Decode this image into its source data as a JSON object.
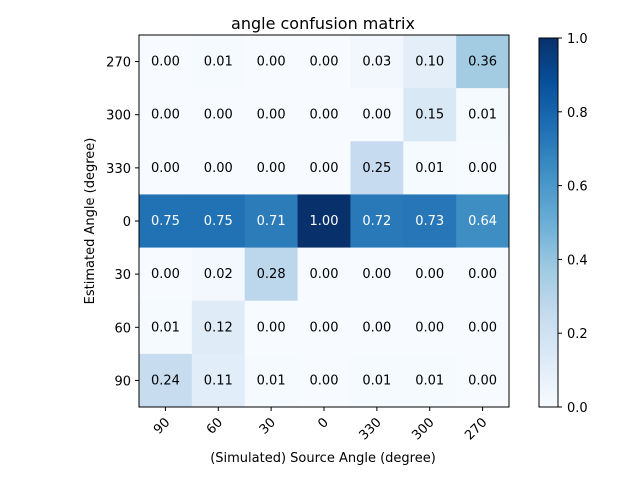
{
  "chart_data": {
    "type": "heatmap",
    "title": "angle confusion matrix",
    "xlabel": "(Simulated) Source Angle (degree)",
    "ylabel": "Estimated Angle (degree)",
    "x_categories": [
      "90",
      "60",
      "30",
      "0",
      "330",
      "300",
      "270"
    ],
    "y_categories": [
      "270",
      "300",
      "330",
      "0",
      "30",
      "60",
      "90"
    ],
    "values": [
      [
        0.0,
        0.01,
        0.0,
        0.0,
        0.03,
        0.1,
        0.36
      ],
      [
        0.0,
        0.0,
        0.0,
        0.0,
        0.0,
        0.15,
        0.01
      ],
      [
        0.0,
        0.0,
        0.0,
        0.0,
        0.25,
        0.01,
        0.0
      ],
      [
        0.75,
        0.75,
        0.71,
        1.0,
        0.72,
        0.73,
        0.64
      ],
      [
        0.0,
        0.02,
        0.28,
        0.0,
        0.0,
        0.0,
        0.0
      ],
      [
        0.01,
        0.12,
        0.0,
        0.0,
        0.0,
        0.0,
        0.0
      ],
      [
        0.24,
        0.11,
        0.01,
        0.0,
        0.01,
        0.01,
        0.0
      ]
    ],
    "colormap": "Blues",
    "colorbar": {
      "range": [
        0.0,
        1.0
      ],
      "ticks": [
        "0.0",
        "0.2",
        "0.4",
        "0.6",
        "0.8",
        "1.0"
      ]
    }
  }
}
